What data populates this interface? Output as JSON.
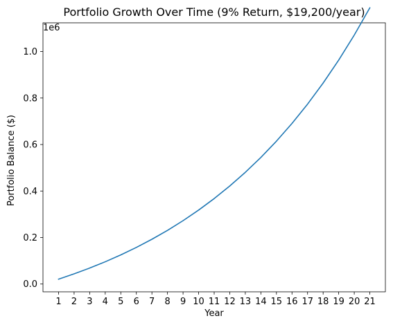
{
  "chart_data": {
    "type": "line",
    "title": "Portfolio Growth Over Time (9% Return, $19,200/year)",
    "xlabel": "Year",
    "ylabel": "Portfolio Balance ($)",
    "y_offset_label": "1e6",
    "x": [
      1,
      2,
      3,
      4,
      5,
      6,
      7,
      8,
      9,
      10,
      11,
      12,
      13,
      14,
      15,
      16,
      17,
      18,
      19,
      20,
      21
    ],
    "x_tick_labels": [
      "1",
      "2",
      "3",
      "4",
      "5",
      "6",
      "7",
      "8",
      "9",
      "10",
      "11",
      "12",
      "13",
      "14",
      "15",
      "16",
      "17",
      "18",
      "19",
      "20",
      "21"
    ],
    "y_ticks": [
      0.0,
      0.2,
      0.4,
      0.6,
      0.8,
      1.0
    ],
    "y_tick_labels": [
      "0.0",
      "0.2",
      "0.4",
      "0.6",
      "0.8",
      "1.0"
    ],
    "y_scale": 1000000,
    "ylim": [
      -0.0335,
      1.1235
    ],
    "xlim": [
      0,
      22
    ],
    "grid": false,
    "series": [
      {
        "color": "#1f77b4",
        "values": [
          20928,
          43740,
          68605,
          95708,
          125250,
          157450,
          192548,
          230805,
          272505,
          317958,
          367502,
          421503,
          480366,
          544527,
          614462,
          690691,
          773781,
          864349,
          963068,
          1070672,
          1187961
        ]
      }
    ]
  }
}
